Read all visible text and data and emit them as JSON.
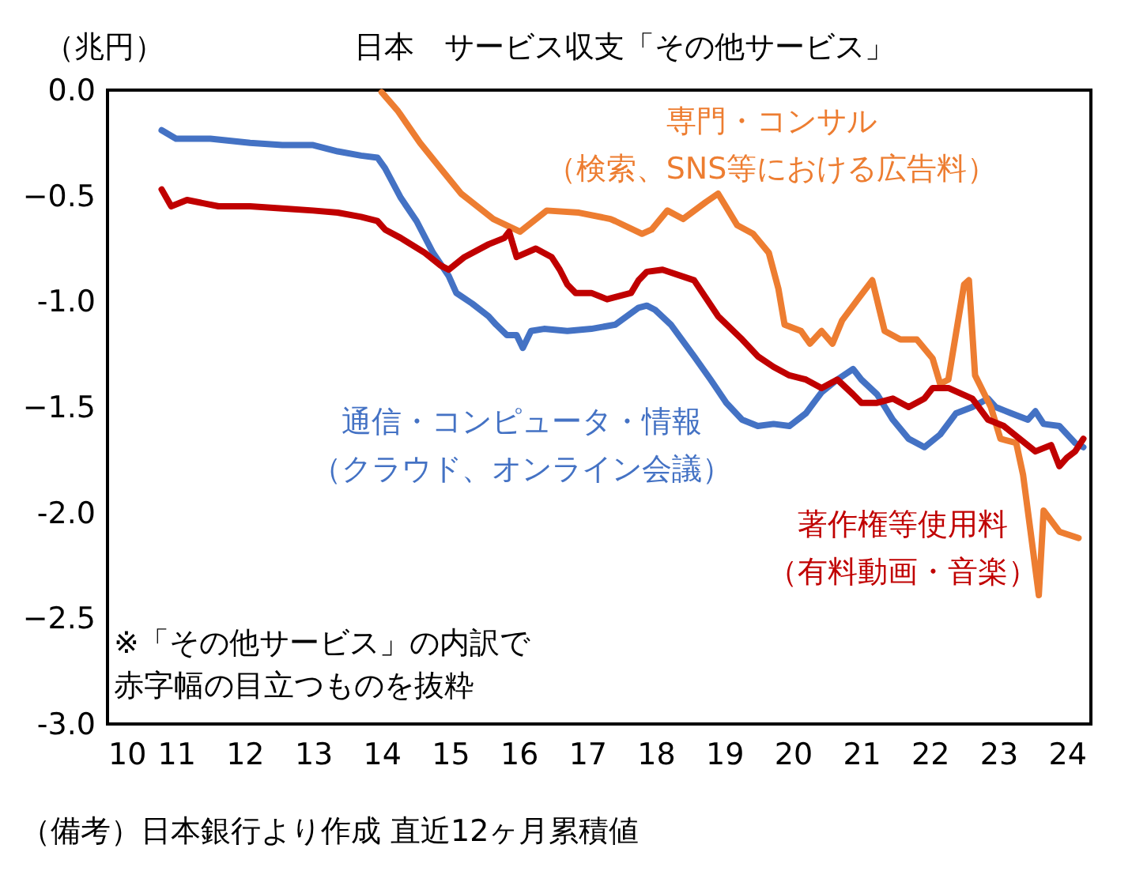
{
  "chart_data": {
    "type": "line",
    "title": "日本　サービス収支「その他サービス」",
    "ylabel": "（兆円）",
    "annotations": [
      "※「その他サービス」の内訳で",
      "赤字幅の目立つものを抜粋",
      "（備考）日本銀行より作成 直近12ヶ月累積値"
    ],
    "xlim": [
      10,
      24.35
    ],
    "xticks": [
      10,
      11,
      12,
      13,
      14,
      15,
      16,
      17,
      18,
      19,
      20,
      21,
      22,
      23,
      24
    ],
    "ylim": [
      -3.0,
      0.0
    ],
    "yticks": [
      {
        "value": 0,
        "label": "0.0"
      },
      -0.5,
      {
        "value": -1,
        "label": "-1.0"
      },
      -1.5,
      {
        "value": -2,
        "label": "-2.0"
      },
      -2.5,
      {
        "value": -3,
        "label": "-3.0"
      }
    ],
    "grid": false,
    "line_style": "solid",
    "marker": "none",
    "series": [
      {
        "name": "通信・コンピュータ・情報（クラウド、オンライン会議）",
        "color": "#4472c4",
        "x": [
          10.79,
          11.0,
          11.5,
          12.08,
          12.55,
          13.0,
          13.36,
          13.7,
          13.94,
          14.05,
          14.28,
          14.51,
          14.75,
          14.98,
          15.09,
          15.32,
          15.56,
          15.67,
          15.83,
          15.97,
          16.06,
          16.18,
          16.37,
          16.71,
          17.06,
          17.41,
          17.75,
          17.87,
          17.99,
          18.22,
          18.56,
          18.8,
          19.03,
          19.26,
          19.49,
          19.72,
          19.95,
          20.19,
          20.42,
          20.65,
          20.88,
          21.0,
          21.23,
          21.46,
          21.69,
          21.92,
          22.15,
          22.38,
          22.62,
          22.85,
          22.96,
          23.19,
          23.43,
          23.54,
          23.66,
          23.89,
          24.12,
          24.24
        ],
        "values": [
          -0.19,
          -0.23,
          -0.23,
          -0.25,
          -0.26,
          -0.26,
          -0.29,
          -0.31,
          -0.32,
          -0.37,
          -0.51,
          -0.62,
          -0.77,
          -0.88,
          -0.96,
          -1.01,
          -1.07,
          -1.11,
          -1.16,
          -1.16,
          -1.22,
          -1.14,
          -1.13,
          -1.14,
          -1.13,
          -1.11,
          -1.03,
          -1.02,
          -1.04,
          -1.11,
          -1.26,
          -1.37,
          -1.48,
          -1.56,
          -1.59,
          -1.58,
          -1.59,
          -1.53,
          -1.43,
          -1.37,
          -1.32,
          -1.37,
          -1.44,
          -1.56,
          -1.65,
          -1.69,
          -1.63,
          -1.53,
          -1.5,
          -1.46,
          -1.5,
          -1.53,
          -1.56,
          -1.52,
          -1.58,
          -1.59,
          -1.67,
          -1.69
        ]
      },
      {
        "name": "専門・コンサル（検索、SNS等における広告料）",
        "color": "#ed7d31",
        "x": [
          14.0,
          14.24,
          14.56,
          14.86,
          15.16,
          15.63,
          16.02,
          16.41,
          16.88,
          17.34,
          17.41,
          17.8,
          17.94,
          18.17,
          18.4,
          18.73,
          18.91,
          19.19,
          19.42,
          19.65,
          19.79,
          19.88,
          20.12,
          20.25,
          20.42,
          20.58,
          20.72,
          20.95,
          21.16,
          21.34,
          21.57,
          21.81,
          22.04,
          22.15,
          22.27,
          22.5,
          22.57,
          22.66,
          22.89,
          23.03,
          23.26,
          23.36,
          23.47,
          23.59,
          23.66,
          23.89,
          24.17
        ],
        "values": [
          -0.01,
          -0.1,
          -0.25,
          -0.37,
          -0.49,
          -0.61,
          -0.67,
          -0.57,
          -0.58,
          -0.61,
          -0.62,
          -0.68,
          -0.66,
          -0.57,
          -0.61,
          -0.53,
          -0.49,
          -0.64,
          -0.68,
          -0.77,
          -0.94,
          -1.11,
          -1.14,
          -1.2,
          -1.14,
          -1.2,
          -1.09,
          -0.99,
          -0.9,
          -1.14,
          -1.18,
          -1.18,
          -1.27,
          -1.39,
          -1.37,
          -0.92,
          -0.9,
          -1.35,
          -1.5,
          -1.65,
          -1.67,
          -1.82,
          -2.09,
          -2.39,
          -1.99,
          -2.09,
          -2.12
        ]
      },
      {
        "name": "著作権等使用料（有料動画・音楽）",
        "color": "#c00000",
        "x": [
          10.79,
          10.93,
          11.16,
          11.62,
          12.08,
          12.55,
          13.0,
          13.36,
          13.7,
          13.94,
          14.05,
          14.28,
          14.63,
          14.86,
          14.98,
          15.21,
          15.56,
          15.79,
          15.86,
          15.97,
          16.25,
          16.48,
          16.6,
          16.71,
          16.83,
          17.06,
          17.29,
          17.64,
          17.75,
          17.87,
          18.1,
          18.56,
          18.91,
          19.26,
          19.49,
          19.72,
          19.95,
          20.19,
          20.42,
          20.65,
          20.88,
          21.0,
          21.23,
          21.46,
          21.69,
          21.92,
          22.04,
          22.27,
          22.62,
          22.85,
          23.08,
          23.31,
          23.54,
          23.77,
          23.89,
          24.0,
          24.12,
          24.24
        ],
        "values": [
          -0.47,
          -0.55,
          -0.52,
          -0.55,
          -0.55,
          -0.56,
          -0.57,
          -0.58,
          -0.6,
          -0.62,
          -0.66,
          -0.7,
          -0.77,
          -0.83,
          -0.85,
          -0.79,
          -0.73,
          -0.7,
          -0.67,
          -0.79,
          -0.75,
          -0.79,
          -0.85,
          -0.92,
          -0.96,
          -0.96,
          -0.99,
          -0.96,
          -0.9,
          -0.86,
          -0.85,
          -0.9,
          -1.07,
          -1.18,
          -1.26,
          -1.31,
          -1.35,
          -1.37,
          -1.41,
          -1.37,
          -1.44,
          -1.48,
          -1.48,
          -1.46,
          -1.5,
          -1.46,
          -1.41,
          -1.41,
          -1.46,
          -1.56,
          -1.59,
          -1.65,
          -1.71,
          -1.68,
          -1.78,
          -1.74,
          -1.71,
          -1.65
        ]
      }
    ]
  }
}
